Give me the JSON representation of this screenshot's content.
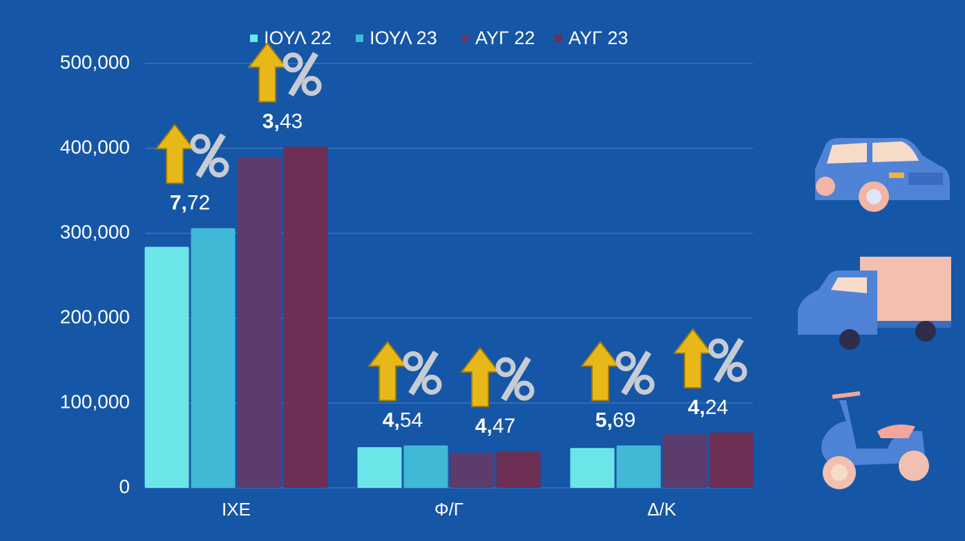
{
  "chart_data": {
    "type": "bar",
    "categories": [
      "ΙΧΕ",
      "Φ/Γ",
      "Δ/Κ"
    ],
    "series": [
      {
        "name": "ΙΟΥΛ 22",
        "color": "#6ce5e8",
        "values": [
          284000,
          48000,
          47000
        ]
      },
      {
        "name": "ΙΟΥΛ 23",
        "color": "#41b8d5",
        "values": [
          306000,
          50000,
          50000
        ]
      },
      {
        "name": "ΑΥΓ 22",
        "color": "#5c3b6d",
        "values": [
          389000,
          41000,
          63000
        ]
      },
      {
        "name": "ΑΥΓ 23",
        "color": "#6d2f53",
        "values": [
          402000,
          43000,
          65000
        ]
      }
    ],
    "annotations": [
      "7,72",
      "3,43",
      "4,54",
      "4,47",
      "5,69",
      "4,24"
    ],
    "ylim": [
      0,
      500000
    ],
    "yticks": [
      0,
      {
        "value": 100000,
        "label": "100,000"
      },
      {
        "value": 200000,
        "label": "200,000"
      },
      {
        "value": 300000,
        "label": "300,000"
      },
      {
        "value": 400000,
        "label": "400,000"
      },
      {
        "value": 500000,
        "label": "500,000"
      }
    ],
    "grid": true
  }
}
